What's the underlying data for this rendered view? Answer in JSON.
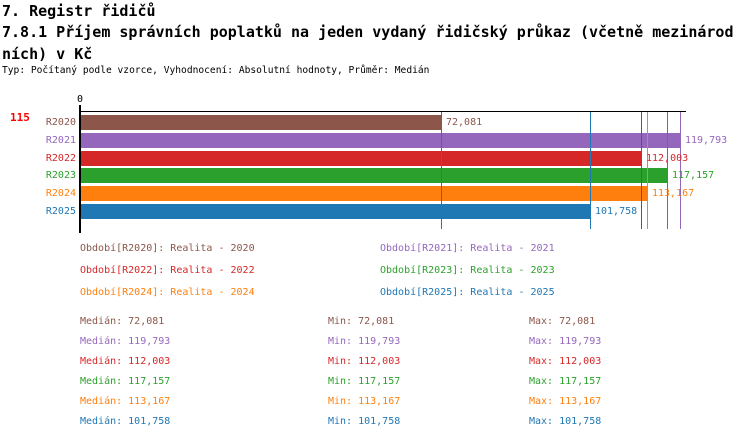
{
  "header": {
    "title": "7. Registr řidičů",
    "subtitle_line1": "7.8.1 Příjem správních poplatků na jeden vydaný řidičský průkaz (včetně mezinárod",
    "subtitle_line2": "ních) v Kč",
    "meta": "Typ: Počítaný podle vzorce, Vyhodnocení: Absolutní hodnoty, Průměr: Medián"
  },
  "row_badge": "115",
  "chart_data": {
    "type": "bar",
    "orientation": "horizontal",
    "title": "7.8.1 Příjem správních poplatků na jeden vydaný řidičský průkaz (včetně mezinárodních) v Kč",
    "categories": [
      "R2020",
      "R2021",
      "R2022",
      "R2023",
      "R2024",
      "R2025"
    ],
    "values": [
      72081,
      119793,
      112003,
      117157,
      113167,
      101758
    ],
    "value_labels": [
      "72,081",
      "119,793",
      "112,003",
      "117,157",
      "113,167",
      "101,758"
    ],
    "colors": [
      "#8c564b",
      "#9467bd",
      "#d62728",
      "#2ca02c",
      "#ff7f0e",
      "#1f77b4"
    ],
    "median_markers": [
      72081,
      119793,
      112003,
      117157,
      113167,
      101758
    ],
    "x_axis": {
      "zero_label": "0",
      "min": 0,
      "max_value_shown": 119793
    },
    "grid": false,
    "legend_position": "below"
  },
  "legend": {
    "items": [
      {
        "label": "Období[R2020]: Realita - 2020",
        "color": "#8c564b"
      },
      {
        "label": "Období[R2021]: Realita - 2021",
        "color": "#9467bd"
      },
      {
        "label": "Období[R2022]: Realita - 2022",
        "color": "#d62728"
      },
      {
        "label": "Období[R2023]: Realita - 2023",
        "color": "#2ca02c"
      },
      {
        "label": "Období[R2024]: Realita - 2024",
        "color": "#ff7f0e"
      },
      {
        "label": "Období[R2025]: Realita - 2025",
        "color": "#1f77b4"
      }
    ]
  },
  "stats": {
    "median_label": "Medián",
    "min_label": "Min",
    "max_label": "Max",
    "rows": [
      {
        "median": "72,081",
        "min": "72,081",
        "max": "72,081",
        "color": "#8c564b"
      },
      {
        "median": "119,793",
        "min": "119,793",
        "max": "119,793",
        "color": "#9467bd"
      },
      {
        "median": "112,003",
        "min": "112,003",
        "max": "112,003",
        "color": "#d62728"
      },
      {
        "median": "117,157",
        "min": "117,157",
        "max": "117,157",
        "color": "#2ca02c"
      },
      {
        "median": "113,167",
        "min": "113,167",
        "max": "113,167",
        "color": "#ff7f0e"
      },
      {
        "median": "101,758",
        "min": "101,758",
        "max": "101,758",
        "color": "#1f77b4"
      }
    ]
  }
}
